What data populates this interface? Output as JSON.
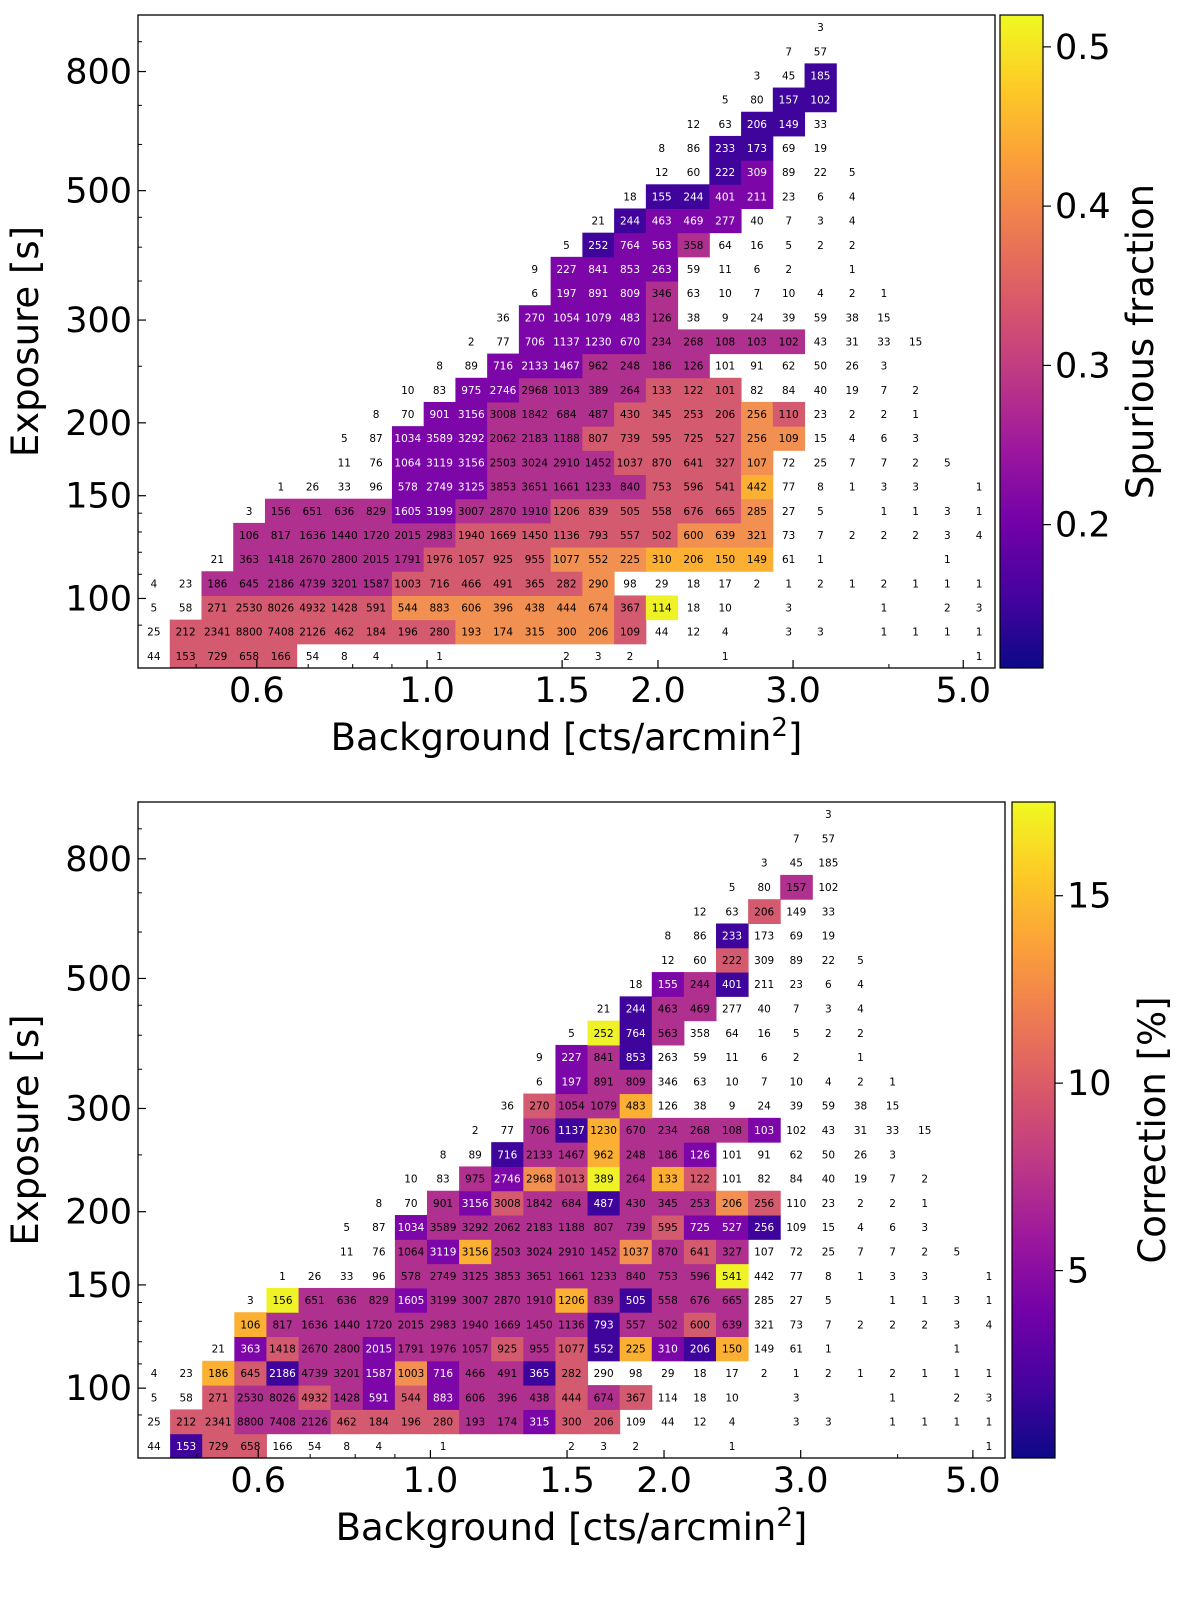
{
  "chart_data": [
    {
      "type": "heatmap",
      "title": "",
      "xlabel": "Background [cts/arcmin",
      "xlabel_sup": "2",
      "xlabel_end": "]",
      "ylabel": "Exposure [s]",
      "x_scale": "log",
      "y_scale": "log",
      "xlim": [
        0.42,
        5.5
      ],
      "ylim": [
        76,
        1000
      ],
      "x_ticks": [
        0.6,
        1.0,
        1.5,
        2.0,
        3.0,
        5.0
      ],
      "x_tick_labels": [
        "0.6",
        "1.0",
        "1.5",
        "2.0",
        "3.0",
        "5.0"
      ],
      "y_ticks": [
        100,
        150,
        200,
        300,
        500,
        800
      ],
      "y_tick_labels": [
        "100",
        "150",
        "200",
        "300",
        "500",
        "800"
      ],
      "colorbar": {
        "label": "Spurious fraction",
        "range": [
          0.11,
          0.52
        ],
        "ticks": [
          0.2,
          0.3,
          0.4,
          0.5
        ],
        "tick_labels": [
          "0.2",
          "0.3",
          "0.4",
          "0.5"
        ],
        "colormap": "plasma"
      },
      "n_x_bins": 27,
      "n_y_bins": 27,
      "rows": [
        {
          "counts": "44,153,729,658,166,54,8,4,,1,,,,2,3,2,,,1,,,,,,,,1",
          "values": ",r,r,r,r,,,,,,,,,,,,,,,,,,,,,,"
        },
        {
          "counts": "25,212,2341,8800,7408,2126,462,184,196,280,193,174,315,300,206,109,44,12,4,,3,3,,1,1,1,1",
          "values": ",r,r,r,r,r,r,r,r,r,o,o,o,o,o,r,,,,,,,,,,,"
        },
        {
          "counts": "5,58,271,2530,8026,4932,1428,591,544,883,606,396,438,444,674,367,114,18,10,,3,,,1,,2,3",
          "values": ",,r,r,r,r,r,r,o,o,o,o,o,o,o,r,y,,,,,,,,,,"
        },
        {
          "counts": "4,23,186,645,2186,4739,3201,1587,1003,716,466,491,365,282,290,98,29,18,17,2,1,2,1,2,1,1,1",
          "values": ",,m,m,m,m,m,m,r,r,r,r,r,r,o,,,,,,,,,,,,"
        },
        {
          "counts": ",,21,363,1418,2670,2800,2015,1791,1976,1057,925,955,1077,552,225,310,206,150,149,61,1,,,,1,",
          "values": ",,,m,m,m,m,m,m,r,r,r,r,o,o,o,O,O,O,O,,,,,,,"
        },
        {
          "counts": ",,,106,817,1636,1440,1720,2015,2983,1940,1669,1450,1136,793,557,502,600,639,321,73,7,2,2,2,3,4",
          "values": ",,,m,m,m,m,m,m,m,r,r,r,r,r,r,r,o,o,o,,,,,,,"
        },
        {
          "counts": ",,,3,156,651,636,829,1605,3199,3007,2870,1910,1206,839,505,558,676,665,285,27,5,,1,1,3,1",
          "values": ",,,,m,m,m,m,p,p,m,m,m,r,r,r,r,r,r,o,,,,,,,"
        },
        {
          "counts": ",,,,1,26,33,96,578,2749,3125,3853,3651,1661,1233,840,753,596,541,442,77,8,1,3,3,,1",
          "values": ",,,,,,,,p,p,p,m,m,m,m,m,r,r,r,O,,,,,,,"
        },
        {
          "counts": ",,,,,,11,76,1064,3119,3156,2503,3024,2910,1452,1037,870,641,327,107,72,25,7,7,2,5,",
          "values": ",,,,,,,,p,p,p,m,m,m,m,r,r,r,r,o,,,,,,,"
        },
        {
          "counts": ",,,,,,5,87,1034,3589,3292,2062,2183,1188,807,739,595,725,527,256,109,15,4,6,3,,",
          "values": ",,,,,,,,p,p,p,m,m,m,r,r,r,r,r,o,o,,,,,,"
        },
        {
          "counts": ",,,,,,,8,70,901,3156,3008,1842,684,487,430,345,253,206,256,110,23,2,2,1,,",
          "values": ",,,,,,,,,p,p,m,m,m,m,r,r,r,r,o,r,,,,,,"
        },
        {
          "counts": ",,,,,,,,10,83,975,2746,2968,1013,389,264,133,122,101,82,84,40,19,7,2,,",
          "values": ",,,,,,,,,,p,p,m,m,m,m,r,r,r,,,,,,,,"
        },
        {
          "counts": ",,,,,,,,,8,89,716,2133,1467,962,248,186,126,101,91,62,50,26,3,,,",
          "values": ",,,,,,,,,,,p,p,p,m,m,m,m,,,,,,,,,"
        },
        {
          "counts": ",,,,,,,,,,2,77,706,1137,1230,670,234,268,108,103,102,43,31,33,15,,",
          "values": ",,,,,,,,,,,,p,p,p,p,m,m,m,m,m,,,,,,"
        },
        {
          "counts": ",,,,,,,,,,,36,270,1054,1079,483,126,38,9,24,39,59,38,15,,,",
          "values": ",,,,,,,,,,,,p,p,p,p,m,,,,,,,,,,"
        },
        {
          "counts": ",,,,,,,,,,,,6,197,891,809,346,63,10,7,10,4,2,1,,,",
          "values": ",,,,,,,,,,,,,p,p,p,m,,,,,,,,,,"
        },
        {
          "counts": ",,,,,,,,,,,,9,227,841,853,263,59,11,6,2,,1,,,,",
          "values": ",,,,,,,,,,,,,p,p,p,p,,,,,,,,,,"
        },
        {
          "counts": ",,,,,,,,,,,,,5,252,764,563,358,64,16,5,2,2,,,,",
          "values": ",,,,,,,,,,,,,,i,p,p,m,,,,,,,,,"
        },
        {
          "counts": ",,,,,,,,,,,,,,21,244,463,469,277,40,7,3,4,,,,",
          "values": ",,,,,,,,,,,,,,,i,p,p,p,,,,,,,,"
        },
        {
          "counts": ",,,,,,,,,,,,,,,18,155,244,401,211,23,6,4,,,,",
          "values": ",,,,,,,,,,,,,,,,i,i,p,p,,,,,,,"
        },
        {
          "counts": ",,,,,,,,,,,,,,,,12,60,222,309,89,22,5,,,,",
          "values": ",,,,,,,,,,,,,,,,,,i,p,,,,,,,"
        },
        {
          "counts": ",,,,,,,,,,,,,,,,8,86,233,173,69,19,,,,,",
          "values": ",,,,,,,,,,,,,,,,,,i,i,,,,,,,"
        },
        {
          "counts": ",,,,,,,,,,,,,,,,,12,63,206,149,33,,,,,",
          "values": ",,,,,,,,,,,,,,,,,,,i,i,,,,,,"
        },
        {
          "counts": ",,,,,,,,,,,,,,,,,,5,80,157,102,,,,,",
          "values": ",,,,,,,,,,,,,,,,,,,,i,i,,,,,"
        },
        {
          "counts": ",,,,,,,,,,,,,,,,,,,3,45,185,,,,,",
          "values": ",,,,,,,,,,,,,,,,,,,,,i,,,,,"
        },
        {
          "counts": ",,,,,,,,,,,,,,,,,,,,7,57,,,,,",
          "values": ",,,,,,,,,,,,,,,,,,,,,,,,,,"
        },
        {
          "counts": ",,,,,,,,,,,,,,,,,,,,,3,,,,,",
          "values": ",,,,,,,,,,,,,,,,,,,,,,,,,,"
        }
      ]
    },
    {
      "type": "heatmap",
      "title": "",
      "xlabel": "Background [cts/arcmin",
      "xlabel_sup": "2",
      "xlabel_end": "]",
      "ylabel": "Exposure [s]",
      "x_scale": "log",
      "y_scale": "log",
      "xlim": [
        0.42,
        5.5
      ],
      "ylim": [
        76,
        1000
      ],
      "x_ticks": [
        0.6,
        1.0,
        1.5,
        2.0,
        3.0,
        5.0
      ],
      "x_tick_labels": [
        "0.6",
        "1.0",
        "1.5",
        "2.0",
        "3.0",
        "5.0"
      ],
      "y_ticks": [
        100,
        150,
        200,
        300,
        500,
        800
      ],
      "y_tick_labels": [
        "100",
        "150",
        "200",
        "300",
        "500",
        "800"
      ],
      "colorbar": {
        "label": "Correction [%]",
        "range": [
          0,
          17.5
        ],
        "ticks": [
          5,
          10,
          15
        ],
        "tick_labels": [
          "5",
          "10",
          "15"
        ],
        "colormap": "plasma"
      },
      "n_x_bins": 27,
      "n_y_bins": 27,
      "rows": [
        {
          "counts": "44,153,729,658,166,54,8,4,,1,,,,2,3,2,,,1,,,,,,,,1",
          "values": ",i,r,r,,,,,,,,,,,,,,,,,,,,,,,"
        },
        {
          "counts": "25,212,2341,8800,7408,2126,462,184,196,280,193,174,315,300,206,109,44,12,4,,3,3,,1,1,1,1",
          "values": ",r,r,m,m,m,r,r,r,r,m,m,p,r,r,,,,,,,,,,,,"
        },
        {
          "counts": "5,58,271,2530,8026,4932,1428,591,544,883,606,396,438,444,674,367,114,18,10,,3,,,1,,2,3",
          "values": ",,r,m,m,r,m,p,r,p,m,m,m,r,m,r,,,,,,,,,,,"
        },
        {
          "counts": "4,23,186,645,2186,4739,3201,1587,1003,716,466,491,365,282,290,98,29,18,17,2,1,2,1,2,1,1,1",
          "values": ",,O,r,i,m,m,p,o,p,m,m,i,r,,,,,,,,,,,,,"
        },
        {
          "counts": ",,21,363,1418,2670,2800,2015,1791,1976,1057,925,955,1077,552,225,310,206,150,149,61,1,,,,1,",
          "values": ",,,p,r,m,m,p,m,m,m,r,m,r,i,O,p,i,O,,,,,,,,"
        },
        {
          "counts": ",,,106,817,1636,1440,1720,2015,2983,1940,1669,1450,1136,793,557,502,600,639,321,73,7,2,2,2,3,4",
          "values": ",,,O,m,m,m,m,m,m,m,m,m,m,i,m,m,r,m,,,,,,,,"
        },
        {
          "counts": ",,,3,156,651,636,829,1605,3199,3007,2870,1910,1206,839,505,558,676,665,285,27,5,,1,1,3,1",
          "values": ",,,,y,m,m,m,p,m,m,m,m,O,m,i,m,m,m,,,,,,,,"
        },
        {
          "counts": ",,,,1,26,33,96,578,2749,3125,3853,3651,1661,1233,840,753,596,541,442,77,8,1,3,3,,1",
          "values": ",,,,,,,,m,m,m,m,m,m,m,m,m,m,y,,,,,,,,"
        },
        {
          "counts": ",,,,,,11,76,1064,3119,3156,2503,3024,2910,1452,1037,870,641,327,107,72,25,7,7,2,5,",
          "values": ",,,,,,,,m,p,O,m,m,m,m,o,m,r,m,,,,,,,,"
        },
        {
          "counts": ",,,,,,5,87,1034,3589,3292,2062,2183,1188,807,739,595,725,527,256,109,15,4,6,3,,",
          "values": ",,,,,,,,p,m,m,m,m,m,m,m,r,p,p,i,,,,,,,"
        },
        {
          "counts": ",,,,,,,8,70,901,3156,3008,1842,684,487,430,345,253,206,256,110,23,2,2,1,,",
          "values": ",,,,,,,,,m,p,r,m,m,i,m,m,m,o,r,,,,,,,"
        },
        {
          "counts": ",,,,,,,,10,83,975,2746,2968,1013,389,264,133,122,101,82,84,40,19,7,2,,",
          "values": ",,,,,,,,,,m,p,o,r,y,m,O,r,,,,,,,,,"
        },
        {
          "counts": ",,,,,,,,,8,89,716,2133,1467,962,248,186,126,101,91,62,50,26,3,,,",
          "values": ",,,,,,,,,,,i,m,m,O,m,m,p,,,,,,,,,"
        },
        {
          "counts": ",,,,,,,,,,2,77,706,1137,1230,670,234,268,108,103,102,43,31,33,15,,",
          "values": ",,,,,,,,,,,,m,i,O,m,m,m,m,p,,,,,,,"
        },
        {
          "counts": ",,,,,,,,,,,36,270,1054,1079,483,126,38,9,24,39,59,38,15,,,",
          "values": ",,,,,,,,,,,,r,m,m,O,,,,,,,,,,,"
        },
        {
          "counts": ",,,,,,,,,,,,6,197,891,809,346,63,10,7,10,4,2,1,,,",
          "values": ",,,,,,,,,,,,,p,m,m,,,,,,,,,,,"
        },
        {
          "counts": ",,,,,,,,,,,,9,227,841,853,263,59,11,6,2,,1,,,,",
          "values": ",,,,,,,,,,,,,p,m,i,,,,,,,,,,,"
        },
        {
          "counts": ",,,,,,,,,,,,,5,252,764,563,358,64,16,5,2,2,,,,",
          "values": ",,,,,,,,,,,,,,y,i,m,,,,,,,,,,"
        },
        {
          "counts": ",,,,,,,,,,,,,,21,244,463,469,277,40,7,3,4,,,,",
          "values": ",,,,,,,,,,,,,,,i,m,m,,,,,,,,,"
        },
        {
          "counts": ",,,,,,,,,,,,,,,18,155,244,401,211,23,6,4,,,,",
          "values": ",,,,,,,,,,,,,,,,p,m,i,,,,,,,,"
        },
        {
          "counts": ",,,,,,,,,,,,,,,,12,60,222,309,89,22,5,,,,",
          "values": ",,,,,,,,,,,,,,,,,,r,,,,,,,,"
        },
        {
          "counts": ",,,,,,,,,,,,,,,,8,86,233,173,69,19,,,,,",
          "values": ",,,,,,,,,,,,,,,,,,i,,,,,,,,"
        },
        {
          "counts": ",,,,,,,,,,,,,,,,,12,63,206,149,33,,,,,",
          "values": ",,,,,,,,,,,,,,,,,,,r,,,,,,,"
        },
        {
          "counts": ",,,,,,,,,,,,,,,,,,5,80,157,102,,,,,",
          "values": ",,,,,,,,,,,,,,,,,,,,m,,,,,,"
        },
        {
          "counts": ",,,,,,,,,,,,,,,,,,,3,45,185,,,,,",
          "values": ",,,,,,,,,,,,,,,,,,,,,,,,,,"
        },
        {
          "counts": ",,,,,,,,,,,,,,,,,,,,7,57,,,,,",
          "values": ",,,,,,,,,,,,,,,,,,,,,,,,,,"
        },
        {
          "counts": ",,,,,,,,,,,,,,,,,,,,,3,,,,,",
          "values": ",,,,,,,,,,,,,,,,,,,,,,,,,,"
        }
      ]
    }
  ]
}
